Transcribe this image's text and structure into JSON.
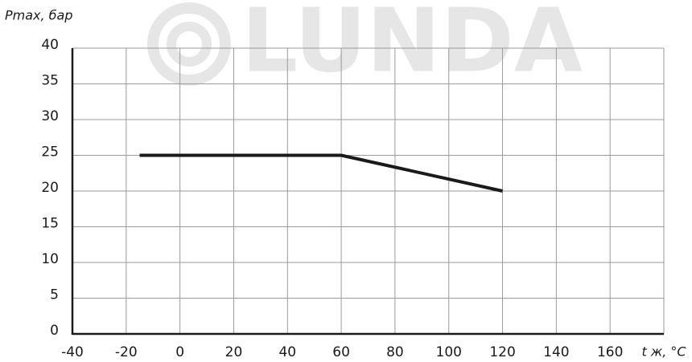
{
  "chart_data": {
    "type": "line",
    "watermark": "LUNDA",
    "y_label": "Pmax, бар",
    "x_label": "t ж, °С",
    "x": [
      -15,
      60,
      120
    ],
    "series": [
      {
        "color": "#1a1a1a",
        "values": [
          25,
          25,
          20
        ]
      }
    ],
    "xlim": [
      -40,
      180
    ],
    "xticks": [
      -40,
      -20,
      0,
      20,
      40,
      60,
      80,
      100,
      120,
      140,
      160
    ],
    "ylim": [
      0,
      40
    ],
    "yticks": [
      0,
      5,
      10,
      15,
      20,
      25,
      30,
      35,
      40
    ],
    "grid": true
  }
}
